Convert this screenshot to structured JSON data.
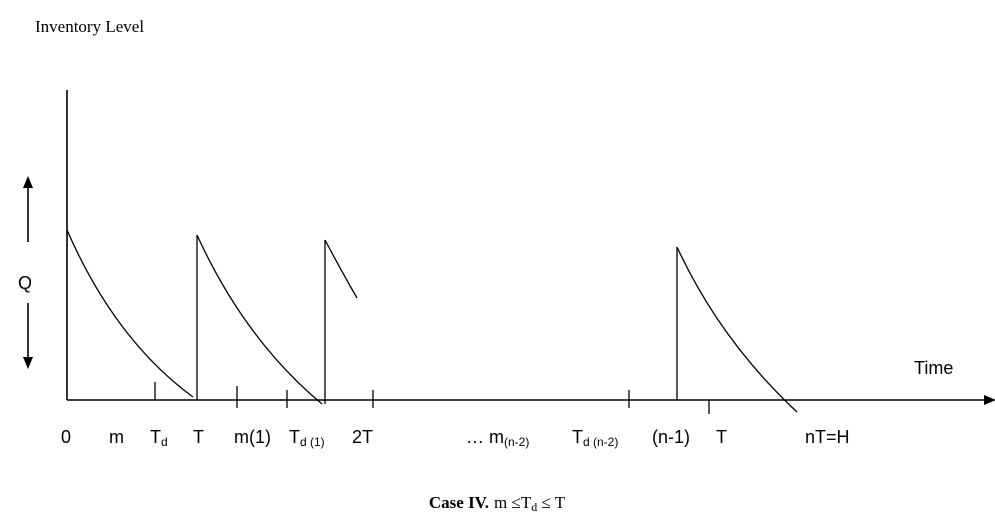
{
  "diagram": {
    "y_axis_label": "Inventory Level",
    "x_axis_label": "Time",
    "quantity_label": "Q",
    "caption": {
      "case": "Case IV.",
      "condition_parts": [
        "m ≤T",
        "d",
        " ≤ T"
      ]
    },
    "ticks": {
      "zero": "0",
      "m": "m",
      "td": [
        "T",
        "d"
      ],
      "t": "T",
      "m1": "m(1)",
      "td1": [
        "T",
        "d (1)"
      ],
      "t2": "2T",
      "mn2": [
        "… m",
        "(n-2)"
      ],
      "tdn2": [
        "T",
        "d (n-2)"
      ],
      "n1": "(n-1)",
      "t_last": "T",
      "nt": "nT=H"
    }
  }
}
